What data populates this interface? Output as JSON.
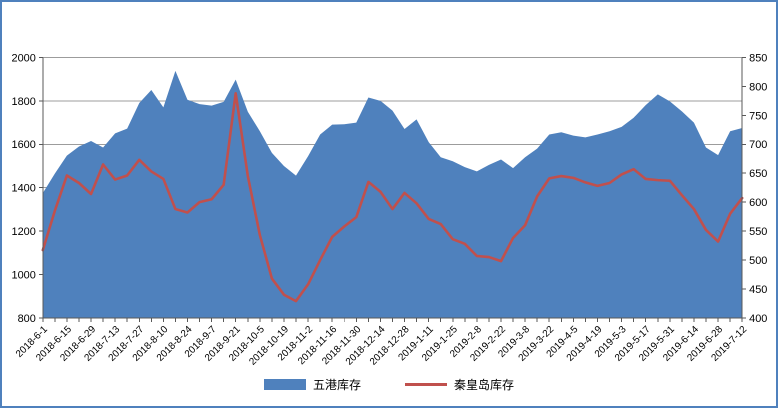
{
  "frame": {
    "border_color": "#4f81bd",
    "background": "#ffffff"
  },
  "chart_data": {
    "type": "area",
    "title": "",
    "xlabel": "",
    "ylabel_left": "",
    "ylabel_right": "",
    "grid": "horizontal",
    "legend_position": "bottom",
    "gridline_color": "#9c9c9c",
    "axis_line_color": "#595959",
    "left_axis": {
      "min": 800,
      "max": 2000,
      "step": 200,
      "tick_labels": [
        "800",
        "1000",
        "1200",
        "1400",
        "1600",
        "1800",
        "2000"
      ]
    },
    "right_axis": {
      "min": 400,
      "max": 850,
      "step": 50,
      "tick_labels": [
        "400",
        "450",
        "500",
        "550",
        "600",
        "650",
        "700",
        "750",
        "800",
        "850"
      ]
    },
    "x_tick_labels": [
      "2018-6-1",
      "2018-6-15",
      "2018-6-29",
      "2018-7-13",
      "2018-7-27",
      "2018-8-10",
      "2018-8-24",
      "2018-9-7",
      "2018-9-21",
      "2018-10-5",
      "2018-10-19",
      "2018-11-2",
      "2018-11-16",
      "2018-11-30",
      "2018-12-14",
      "2018-12-28",
      "2019-1-11",
      "2019-1-25",
      "2019-2-8",
      "2019-2-22",
      "2019-3-8",
      "2019-3-22",
      "2019-4-5",
      "2019-4-19",
      "2019-5-3",
      "2019-5-17",
      "2019-5-31",
      "2019-6-14",
      "2019-6-28",
      "2019-7-12"
    ],
    "x_resolution": "weekly (two points per labeled tick)",
    "series": [
      {
        "name": "五港库存",
        "type": "area",
        "axis": "left",
        "color": "#4f81bd",
        "values": [
          1375,
          1465,
          1548,
          1590,
          1615,
          1585,
          1650,
          1672,
          1790,
          1850,
          1770,
          1938,
          1805,
          1785,
          1778,
          1795,
          1898,
          1750,
          1660,
          1560,
          1500,
          1455,
          1545,
          1645,
          1690,
          1692,
          1700,
          1815,
          1800,
          1755,
          1670,
          1715,
          1610,
          1540,
          1522,
          1495,
          1475,
          1505,
          1530,
          1490,
          1540,
          1580,
          1645,
          1655,
          1640,
          1632,
          1645,
          1660,
          1680,
          1722,
          1780,
          1830,
          1798,
          1752,
          1700,
          1585,
          1550,
          1660,
          1675
        ]
      },
      {
        "name": "秦皇岛库存",
        "type": "line",
        "axis": "right",
        "color": "#c0504d",
        "values": [
          517,
          585,
          646,
          633,
          614,
          665,
          639,
          646,
          673,
          653,
          640,
          588,
          582,
          600,
          605,
          630,
          788,
          645,
          543,
          468,
          440,
          429,
          458,
          500,
          540,
          558,
          574,
          635,
          618,
          588,
          616,
          598,
          571,
          562,
          536,
          528,
          507,
          505,
          498,
          538,
          560,
          610,
          641,
          645,
          642,
          634,
          628,
          633,
          648,
          657,
          640,
          638,
          637,
          612,
          588,
          552,
          532,
          580,
          607
        ]
      }
    ]
  }
}
